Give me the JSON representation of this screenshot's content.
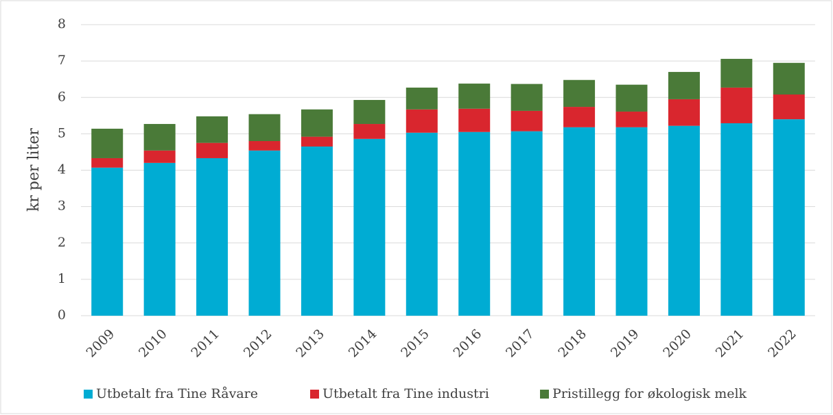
{
  "chart_data": {
    "type": "stacked_bar",
    "y_label": "kr  per liter",
    "categories": [
      "2009",
      "2010",
      "2011",
      "2012",
      "2013",
      "2014",
      "2015",
      "2016",
      "2017",
      "2018",
      "2019",
      "2020",
      "2021",
      "2022"
    ],
    "series": [
      {
        "name": "Utbetalt fra Tine Råvare",
        "color": "#00acd3",
        "values": [
          4.07,
          4.2,
          4.33,
          4.54,
          4.65,
          4.86,
          5.03,
          5.05,
          5.07,
          5.18,
          5.18,
          5.22,
          5.29,
          5.4
        ]
      },
      {
        "name": "Utbetalt fra Tine industri",
        "color": "#d9262e",
        "values": [
          0.26,
          0.34,
          0.42,
          0.26,
          0.27,
          0.41,
          0.64,
          0.64,
          0.56,
          0.56,
          0.43,
          0.73,
          0.98,
          0.68
        ]
      },
      {
        "name": "Pristillegg for økologisk melk",
        "color": "#4a7a38",
        "values": [
          0.81,
          0.73,
          0.73,
          0.74,
          0.75,
          0.66,
          0.6,
          0.69,
          0.74,
          0.74,
          0.74,
          0.75,
          0.79,
          0.87
        ]
      }
    ],
    "ylim": [
      0,
      8
    ],
    "yticks": [
      0,
      1,
      2,
      3,
      4,
      5,
      6,
      7,
      8
    ],
    "grid": true,
    "legend": "bottom"
  }
}
